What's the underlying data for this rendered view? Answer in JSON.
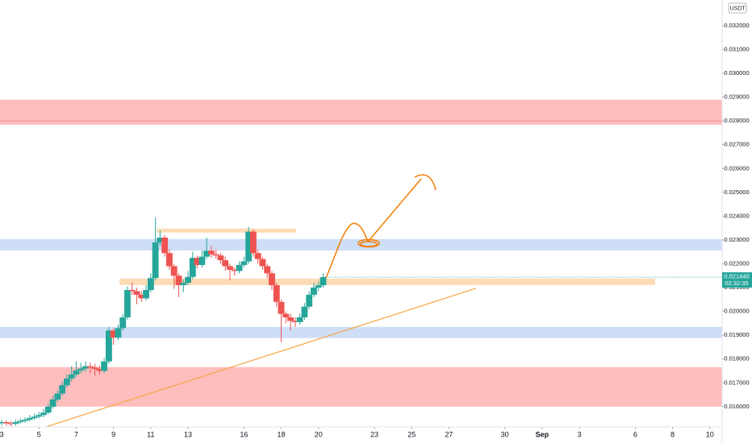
{
  "chart_data": {
    "type": "candlestick",
    "currency": "USDT",
    "x": [
      0,
      0.25,
      0.5,
      0.75,
      1,
      1.25,
      1.5,
      1.75,
      2,
      2.25,
      2.5,
      2.75,
      3,
      3.25,
      3.5,
      3.75,
      4,
      4.25,
      4.5,
      4.75,
      5,
      5.25,
      5.5,
      5.75,
      6,
      6.25,
      6.5,
      6.75,
      7,
      7.25,
      7.5,
      7.75,
      8,
      8.25,
      8.5,
      8.75,
      9,
      9.25,
      9.5,
      9.75,
      10,
      10.25,
      10.5,
      10.75,
      11,
      11.25,
      11.5,
      11.75,
      12,
      12.25,
      12.5,
      12.75,
      13,
      13.25,
      13.5,
      13.75,
      14,
      14.25,
      14.5,
      14.75,
      15,
      15.25,
      15.5,
      15.75,
      16,
      16.25,
      16.5,
      16.75,
      17,
      17.25
    ],
    "series": [
      {
        "open": [
          0.0153,
          0.01535,
          0.0153,
          0.01528,
          0.01535,
          0.0154,
          0.01545,
          0.01552,
          0.01558,
          0.01565,
          0.01575,
          0.016,
          0.0163,
          0.01655,
          0.0169,
          0.01718,
          0.01735,
          0.01752,
          0.0176,
          0.0177,
          0.01765,
          0.01758,
          0.0175,
          0.0179,
          0.0192,
          0.0189,
          0.0193,
          0.01975,
          0.0209,
          0.02085,
          0.0207,
          0.02055,
          0.0209,
          0.0214,
          0.0229,
          0.0231,
          0.02245,
          0.0219,
          0.0215,
          0.0211,
          0.0212,
          0.02145,
          0.02225,
          0.02195,
          0.0223,
          0.02255,
          0.0224,
          0.02235,
          0.02215,
          0.0219,
          0.02175,
          0.0217,
          0.02195,
          0.0221,
          0.02335,
          0.02245,
          0.0222,
          0.0219,
          0.0216,
          0.0211,
          0.0204,
          0.0199,
          0.01975,
          0.0196,
          0.01955,
          0.01975,
          0.0202,
          0.0207,
          0.021,
          0.0211
        ],
        "high": [
          0.01545,
          0.01542,
          0.0154,
          0.01545,
          0.0155,
          0.01555,
          0.01565,
          0.0157,
          0.01578,
          0.0159,
          0.01612,
          0.01645,
          0.01668,
          0.01705,
          0.01735,
          0.0177,
          0.0179,
          0.01785,
          0.0179,
          0.01785,
          0.0178,
          0.01772,
          0.01805,
          0.01935,
          0.0193,
          0.01945,
          0.0199,
          0.02105,
          0.0212,
          0.021,
          0.02085,
          0.0211,
          0.0216,
          0.02395,
          0.0234,
          0.0232,
          0.0226,
          0.022,
          0.0216,
          0.02135,
          0.0217,
          0.0225,
          0.02235,
          0.02255,
          0.0231,
          0.02275,
          0.0226,
          0.02245,
          0.0223,
          0.022,
          0.02185,
          0.0221,
          0.0223,
          0.02355,
          0.02345,
          0.0226,
          0.0223,
          0.022,
          0.0217,
          0.0212,
          0.0205,
          0.02,
          0.0199,
          0.01975,
          0.0199,
          0.02035,
          0.02085,
          0.0212,
          0.02125,
          0.0216
        ],
        "low": [
          0.01522,
          0.0152,
          0.01518,
          0.0152,
          0.01528,
          0.01532,
          0.01538,
          0.01545,
          0.0155,
          0.01555,
          0.01568,
          0.01592,
          0.0162,
          0.01645,
          0.0168,
          0.01705,
          0.01725,
          0.0174,
          0.01745,
          0.0174,
          0.0173,
          0.01735,
          0.0174,
          0.0178,
          0.0186,
          0.0188,
          0.0192,
          0.01965,
          0.0207,
          0.0203,
          0.0204,
          0.02045,
          0.0208,
          0.0213,
          0.02275,
          0.0223,
          0.02175,
          0.02095,
          0.0206,
          0.0208,
          0.0211,
          0.02135,
          0.0218,
          0.02185,
          0.0222,
          0.02225,
          0.0222,
          0.022,
          0.0217,
          0.0213,
          0.0215,
          0.0216,
          0.02185,
          0.022,
          0.0223,
          0.022,
          0.02175,
          0.0214,
          0.0209,
          0.0202,
          0.0187,
          0.0195,
          0.0192,
          0.01935,
          0.01945,
          0.01965,
          0.0201,
          0.0206,
          0.02085,
          0.021
        ],
        "close": [
          0.01535,
          0.0153,
          0.01528,
          0.01535,
          0.0154,
          0.01545,
          0.01552,
          0.01558,
          0.01565,
          0.01575,
          0.016,
          0.0163,
          0.01655,
          0.0169,
          0.01718,
          0.01735,
          0.01752,
          0.0176,
          0.0177,
          0.01765,
          0.01758,
          0.0175,
          0.0179,
          0.0192,
          0.0189,
          0.0193,
          0.01975,
          0.0209,
          0.02085,
          0.0207,
          0.02055,
          0.0209,
          0.0214,
          0.0229,
          0.0231,
          0.02245,
          0.0219,
          0.0215,
          0.0211,
          0.0212,
          0.02145,
          0.02225,
          0.02195,
          0.0223,
          0.02255,
          0.0224,
          0.02235,
          0.02215,
          0.0219,
          0.02175,
          0.0217,
          0.02195,
          0.0221,
          0.02335,
          0.02245,
          0.0222,
          0.0219,
          0.0216,
          0.0211,
          0.0204,
          0.0199,
          0.01975,
          0.0196,
          0.01955,
          0.01975,
          0.0202,
          0.0207,
          0.021,
          0.0211,
          0.02144
        ]
      }
    ],
    "up_color": "#26a69a",
    "down_color": "#ef5350",
    "xlim": [
      -0.09,
      38.66
    ],
    "xticks": [
      {
        "value": 0,
        "label": "3"
      },
      {
        "value": 2,
        "label": "5"
      },
      {
        "value": 4,
        "label": "7"
      },
      {
        "value": 6,
        "label": "9"
      },
      {
        "value": 8,
        "label": "11"
      },
      {
        "value": 10,
        "label": "13"
      },
      {
        "value": 13,
        "label": "16"
      },
      {
        "value": 15,
        "label": "18"
      },
      {
        "value": 17,
        "label": "20"
      },
      {
        "value": 20,
        "label": "23"
      },
      {
        "value": 22,
        "label": "25"
      },
      {
        "value": 24,
        "label": "27"
      },
      {
        "value": 27,
        "label": "30"
      },
      {
        "value": 29,
        "label": "Sep"
      },
      {
        "value": 31,
        "label": "3"
      },
      {
        "value": 34,
        "label": "6"
      },
      {
        "value": 36,
        "label": "8"
      },
      {
        "value": 38,
        "label": "10"
      }
    ],
    "ylim": [
      0.01515,
      0.03308
    ],
    "yticks": [
      {
        "value": 0.016,
        "label": "0.016000"
      },
      {
        "value": 0.017,
        "label": "0.017000"
      },
      {
        "value": 0.018,
        "label": "0.018000"
      },
      {
        "value": 0.019,
        "label": "0.019000"
      },
      {
        "value": 0.02,
        "label": "0.020000"
      },
      {
        "value": 0.021,
        "label": "0.021000"
      },
      {
        "value": 0.022,
        "label": "0.022000"
      },
      {
        "value": 0.023,
        "label": "0.023000"
      },
      {
        "value": 0.024,
        "label": "0.024000"
      },
      {
        "value": 0.025,
        "label": "0.025000"
      },
      {
        "value": 0.026,
        "label": "0.026000"
      },
      {
        "value": 0.027,
        "label": "0.027000"
      },
      {
        "value": 0.028,
        "label": "0.028000"
      },
      {
        "value": 0.029,
        "label": "0.029000"
      },
      {
        "value": 0.03,
        "label": "0.030000"
      },
      {
        "value": 0.031,
        "label": "0.031000"
      },
      {
        "value": 0.032,
        "label": "0.032000"
      }
    ],
    "last_price": 0.02144,
    "last_price_label": "0.021440",
    "countdown": "02:32:35",
    "zones": [
      {
        "y0": 0.02784,
        "y1": 0.02889,
        "color": "#ffb3b3"
      },
      {
        "y0": 0.016,
        "y1": 0.01766,
        "color": "#ffb3b3"
      },
      {
        "y0": 0.02256,
        "y1": 0.02304,
        "color": "#c5d8f5"
      },
      {
        "y0": 0.01888,
        "y1": 0.01935,
        "color": "#c5d8f5"
      },
      {
        "y0": 0.02331,
        "y1": 0.02348,
        "x0": 8.31,
        "x1": 15.8,
        "color": "#fcd5a8"
      },
      {
        "y0": 0.02111,
        "y1": 0.02138,
        "x0": 6.32,
        "x1": 35.06,
        "color": "#fcd5a8"
      }
    ],
    "level": {
      "value": 0.028,
      "color": "#f28b8b"
    },
    "trendline": {
      "x": [
        2.42,
        25.45
      ],
      "y": [
        0.01516,
        0.02097
      ],
      "color": "#f7a440"
    }
  }
}
